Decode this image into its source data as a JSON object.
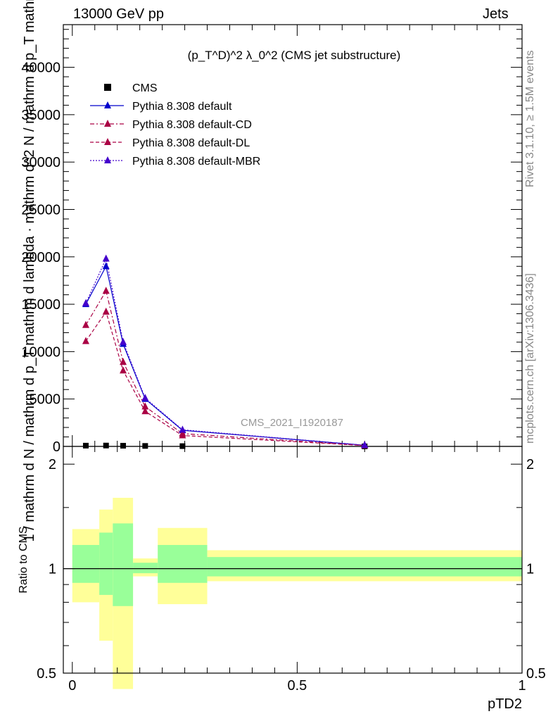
{
  "header": {
    "left": "13000 GeV pp",
    "right": "Jets"
  },
  "side": {
    "rivet": "Rivet 3.1.10, ≥ 1.5M events",
    "mcplots": "mcplots.cern.ch [arXiv:1306.3436]"
  },
  "chart_data": [
    {
      "type": "line",
      "panel": "main",
      "title": "(p_T^D)^2 λ_0^2 (CMS jet substructure)",
      "ylabel": "1 / mathrm d N / mathrm d p_T mathrm d lambda · mathrm d^2 N / mathrm d p_T mathrm d lambda",
      "xlim": [
        -0.02,
        1.0
      ],
      "ylim": [
        0,
        44500
      ],
      "yticks": [
        0,
        5000,
        10000,
        15000,
        20000,
        25000,
        30000,
        35000,
        40000
      ],
      "watermark": "CMS_2021_I1920187",
      "legend_position": "top-left",
      "series": [
        {
          "name": "CMS",
          "style": "marker-square",
          "color": "#000000",
          "x": [
            0.03,
            0.075,
            0.113,
            0.162,
            0.245,
            0.65
          ],
          "y": [
            80,
            90,
            70,
            50,
            30,
            5
          ]
        },
        {
          "name": "Pythia 8.308 default",
          "style": "solid",
          "color": "#0000cc",
          "x": [
            0.03,
            0.075,
            0.113,
            0.162,
            0.245,
            0.65
          ],
          "y": [
            15000,
            19000,
            10800,
            5000,
            1700,
            120
          ]
        },
        {
          "name": "Pythia 8.308 default-CD",
          "style": "dashdot",
          "color": "#aa0044",
          "x": [
            0.03,
            0.075,
            0.113,
            0.162,
            0.245,
            0.65
          ],
          "y": [
            12800,
            16400,
            8900,
            4200,
            1350,
            100
          ]
        },
        {
          "name": "Pythia 8.308 default-DL",
          "style": "dashed",
          "color": "#aa0044",
          "x": [
            0.03,
            0.075,
            0.113,
            0.162,
            0.245,
            0.65
          ],
          "y": [
            11100,
            14200,
            8000,
            3700,
            1150,
            90
          ]
        },
        {
          "name": "Pythia 8.308 default-MBR",
          "style": "dotted",
          "color": "#4400cc",
          "x": [
            0.03,
            0.075,
            0.113,
            0.162,
            0.245,
            0.65
          ],
          "y": [
            15100,
            19800,
            11000,
            5100,
            1750,
            125
          ]
        }
      ]
    },
    {
      "type": "area",
      "panel": "ratio",
      "xlabel": "pTD2",
      "ylabel": "Ratio to CMS",
      "xlim": [
        -0.02,
        1.0
      ],
      "ylim": [
        0.5,
        2.25
      ],
      "yticks": [
        0.5,
        1,
        2
      ],
      "xticks": [
        0,
        0.5,
        1
      ],
      "xtick_labels": [
        "0",
        "0.5",
        "1"
      ],
      "bins": [
        {
          "x0": 0.0,
          "x1": 0.06,
          "inner": [
            0.91,
            1.17
          ],
          "outer": [
            0.8,
            1.3
          ]
        },
        {
          "x0": 0.06,
          "x1": 0.09,
          "inner": [
            0.84,
            1.27
          ],
          "outer": [
            0.62,
            1.48
          ]
        },
        {
          "x0": 0.09,
          "x1": 0.135,
          "inner": [
            0.78,
            1.35
          ],
          "outer": [
            0.45,
            1.6
          ]
        },
        {
          "x0": 0.135,
          "x1": 0.19,
          "inner": [
            0.97,
            1.04
          ],
          "outer": [
            0.95,
            1.07
          ]
        },
        {
          "x0": 0.19,
          "x1": 0.3,
          "inner": [
            0.91,
            1.17
          ],
          "outer": [
            0.79,
            1.31
          ]
        },
        {
          "x0": 0.3,
          "x1": 1.0,
          "inner": [
            0.95,
            1.08
          ],
          "outer": [
            0.92,
            1.13
          ]
        }
      ],
      "colors": {
        "inner": "#99ff99",
        "outer": "#ffff99"
      }
    }
  ]
}
